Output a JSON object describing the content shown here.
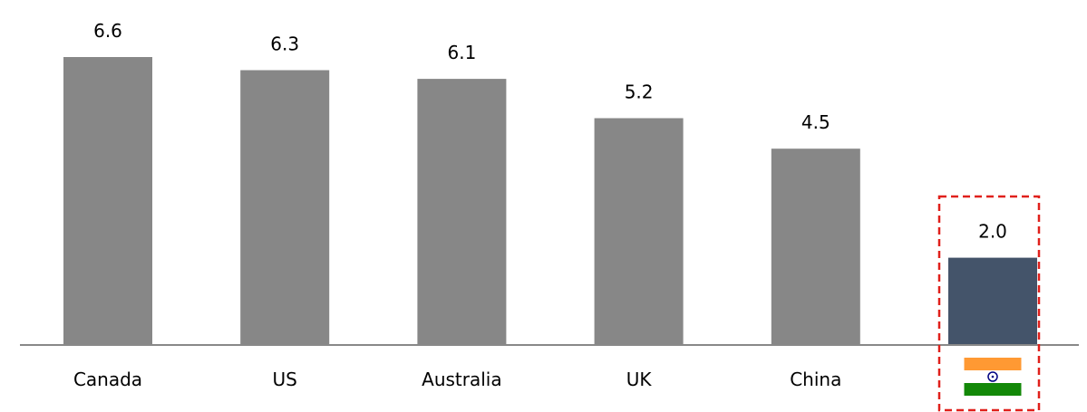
{
  "chart_data": {
    "type": "bar",
    "categories": [
      "Canada",
      "US",
      "Australia",
      "UK",
      "China",
      ""
    ],
    "values": [
      6.6,
      6.3,
      6.1,
      5.2,
      4.5,
      2.0
    ],
    "value_labels": [
      "6.6",
      "6.3",
      "6.1",
      "5.2",
      "4.5",
      "2.0"
    ],
    "title": "",
    "xlabel": "",
    "ylabel": "",
    "ylim": [
      0,
      6.6
    ],
    "grid": false,
    "legend": "none",
    "last_category_icon": "india-flag-icon",
    "highlighted_category_index": 5
  },
  "colors": {
    "bar": "#878787",
    "highlight_bar": "#44546a",
    "axis": "#888888",
    "highlight_box": "#e0201b",
    "flag_saffron": "#ff9933",
    "flag_white": "#ffffff",
    "flag_green": "#138808",
    "flag_chakra": "#000080"
  }
}
